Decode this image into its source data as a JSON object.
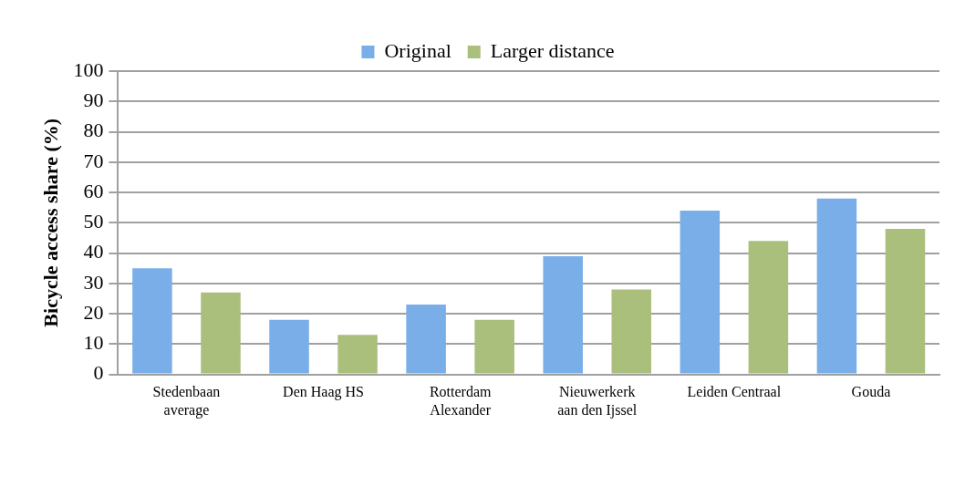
{
  "chart_data": {
    "type": "bar",
    "ylabel": "Bicycle access share (%)",
    "categories": [
      "Stedenbaan average",
      "Den Haag HS",
      "Rotterdam Alexander",
      "Nieuwerkerk aan den Ijssel",
      "Leiden Centraal",
      "Gouda"
    ],
    "series": [
      {
        "name": "Original",
        "color": "#7aaee8",
        "values": [
          35,
          18,
          23,
          39,
          54,
          58
        ]
      },
      {
        "name": "Larger distance",
        "color": "#aabf7c",
        "values": [
          27,
          13,
          18,
          28,
          44,
          48
        ]
      }
    ],
    "ylim": [
      0,
      100
    ],
    "yticks": [
      0,
      10,
      20,
      30,
      40,
      50,
      60,
      70,
      80,
      90,
      100
    ],
    "grid": "y",
    "legend": "top"
  }
}
